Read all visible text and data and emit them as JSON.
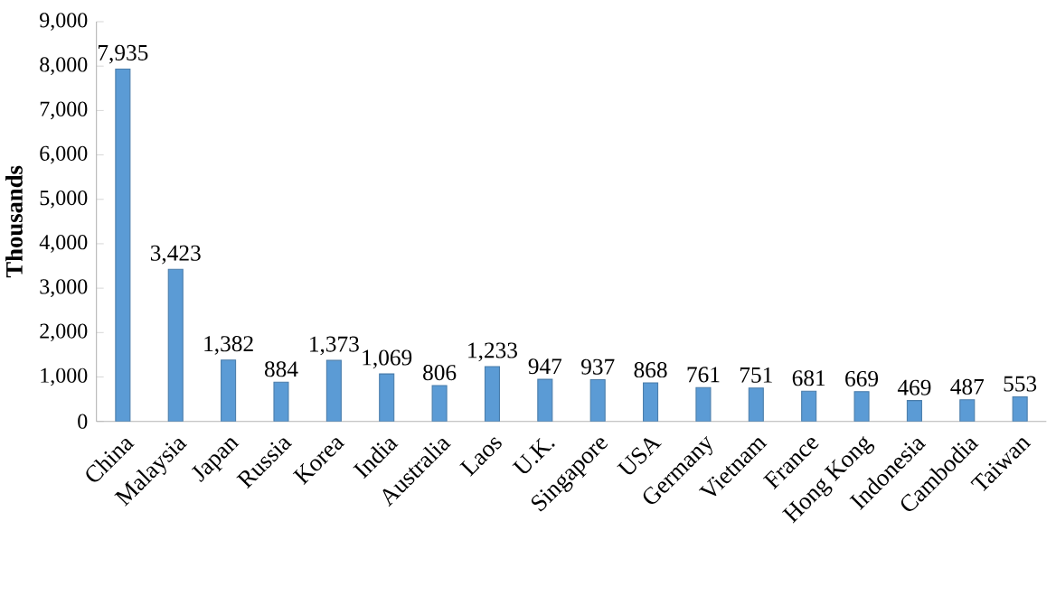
{
  "chart_data": {
    "type": "bar",
    "ylabel": "Thousands",
    "categories": [
      "China",
      "Malaysia",
      "Japan",
      "Russia",
      "Korea",
      "India",
      "Australia",
      "Laos",
      "U.K.",
      "Singapore",
      "USA",
      "Germany",
      "Vietnam",
      "France",
      "Hong Kong",
      "Indonesia",
      "Cambodia",
      "Taiwan"
    ],
    "values": [
      7935,
      3423,
      1382,
      884,
      1373,
      1069,
      806,
      1233,
      947,
      937,
      868,
      761,
      751,
      681,
      669,
      469,
      487,
      553
    ],
    "value_labels": [
      "7,935",
      "3,423",
      "1,382",
      "884",
      "1,373",
      "1,069",
      "806",
      "1,233",
      "947",
      "937",
      "868",
      "761",
      "751",
      "681",
      "669",
      "469",
      "487",
      "553"
    ],
    "color": "#5b9bd5",
    "ylim": [
      0,
      9000
    ],
    "yticks": [
      {
        "value": 0,
        "label": "0"
      },
      {
        "value": 1000,
        "label": "1,000"
      },
      {
        "value": 2000,
        "label": "2,000"
      },
      {
        "value": 3000,
        "label": "3,000"
      },
      {
        "value": 4000,
        "label": "4,000"
      },
      {
        "value": 5000,
        "label": "5,000"
      },
      {
        "value": 6000,
        "label": "6,000"
      },
      {
        "value": 7000,
        "label": "7,000"
      },
      {
        "value": 8000,
        "label": "8,000"
      },
      {
        "value": 9000,
        "label": "9,000"
      }
    ],
    "orientation": "vertical"
  }
}
